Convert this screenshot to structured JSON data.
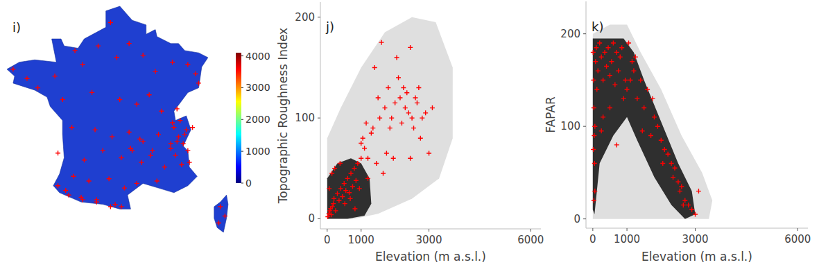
{
  "chart_data": [
    {
      "type": "map",
      "title": "i)",
      "color": "#ff0000",
      "marker": "plus",
      "lon": [
        -4.4,
        -3.5,
        -2.8,
        -1.7,
        -0.4,
        0.1,
        1.1,
        1.9,
        2.3,
        3.1,
        4.0,
        4.8,
        5.9,
        6.9,
        7.4,
        7.6,
        -1.2,
        0.7,
        2.5,
        3.6,
        4.4,
        5.2,
        6.2,
        -0.6,
        0.9,
        2.0,
        3.1,
        4.0,
        5.0,
        5.8,
        -1.5,
        0.2,
        1.4,
        2.6,
        3.3,
        3.9,
        4.6,
        5.4,
        -0.5,
        0.5,
        1.8,
        2.8,
        3.6,
        4.9,
        -1.0,
        0.0,
        1.0,
        2.2,
        6.0,
        6.3,
        6.6,
        6.9,
        7.0,
        6.5,
        6.1,
        6.8,
        5.8,
        5.9,
        6.4,
        7.2,
        6.2,
        6.7,
        -1.5,
        -0.8,
        0.1,
        1.0,
        1.9,
        2.6,
        9.0,
        9.3,
        8.9,
        3.2,
        3.8,
        4.5
      ],
      "lat": [
        48.4,
        48.0,
        47.6,
        48.1,
        49.2,
        48.6,
        49.4,
        50.4,
        48.9,
        49.5,
        49.0,
        48.3,
        48.7,
        48.6,
        48.2,
        47.8,
        47.1,
        47.4,
        47.1,
        46.9,
        47.3,
        46.6,
        46.7,
        45.9,
        45.8,
        45.5,
        45.7,
        45.3,
        45.6,
        45.2,
        44.8,
        44.5,
        44.9,
        44.6,
        44.9,
        44.4,
        44.9,
        44.2,
        43.8,
        43.6,
        43.7,
        43.3,
        43.5,
        43.6,
        43.2,
        42.9,
        42.8,
        42.6,
        45.9,
        45.5,
        45.2,
        44.9,
        44.4,
        44.3,
        44.7,
        45.8,
        45.0,
        46.1,
        46.2,
        45.9,
        45.3,
        45.6,
        43.4,
        43.0,
        42.8,
        42.7,
        42.5,
        42.5,
        42.5,
        42.1,
        41.8,
        45.0,
        45.4,
        44.7
      ],
      "colorbar_range": [
        0,
        4100
      ],
      "colorbar_ticks": [
        0,
        1000,
        2000,
        3000,
        4000
      ]
    },
    {
      "type": "scatter",
      "title": "j)",
      "x_label": "Elevation (m a.s.l.)",
      "y_label": "Topographic Roughness Index",
      "xlim": [
        -200,
        6300
      ],
      "xticks": [
        0,
        1000,
        3000,
        6000
      ],
      "ylim": [
        -10,
        215
      ],
      "yticks": [
        0,
        100,
        200
      ],
      "series": [
        {
          "type": "polygon",
          "color": "#c4c4c4",
          "x": [
            0,
            0,
            400,
            1000,
            1700,
            2500,
            3200,
            3700,
            3700,
            3300,
            2500,
            1500,
            800
          ],
          "values": [
            0,
            80,
            110,
            150,
            185,
            200,
            195,
            150,
            80,
            40,
            20,
            5,
            0
          ]
        },
        {
          "type": "polygon",
          "color": "#111111",
          "x": [
            0,
            0,
            300,
            700,
            1000,
            1250,
            1300,
            1100,
            600
          ],
          "values": [
            0,
            40,
            55,
            60,
            55,
            40,
            15,
            3,
            0
          ]
        },
        {
          "type": "scatter",
          "color": "#ff0000",
          "marker": "plus",
          "x": [
            20,
            50,
            80,
            100,
            120,
            150,
            180,
            200,
            250,
            300,
            350,
            400,
            450,
            500,
            550,
            600,
            650,
            700,
            750,
            800,
            850,
            900,
            950,
            1000,
            60,
            140,
            220,
            380,
            520,
            680,
            820,
            1050,
            1100,
            1150,
            1200,
            1300,
            1350,
            1400,
            1450,
            1500,
            1550,
            1600,
            1700,
            1750,
            1800,
            1850,
            1900,
            2000,
            2050,
            2100,
            2150,
            2200,
            2250,
            2300,
            2350,
            2400,
            2450,
            2500,
            2550,
            2600,
            2650,
            2700,
            2750,
            2800,
            2900,
            3000,
            3100,
            1650,
            1950,
            2450,
            1000,
            1200
          ],
          "values": [
            2,
            5,
            8,
            10,
            4,
            12,
            15,
            20,
            8,
            25,
            18,
            30,
            22,
            35,
            28,
            40,
            26,
            45,
            32,
            50,
            38,
            55,
            30,
            60,
            30,
            45,
            50,
            55,
            15,
            20,
            10,
            80,
            70,
            95,
            60,
            85,
            90,
            150,
            55,
            120,
            100,
            175,
            110,
            65,
            130,
            90,
            100,
            115,
            160,
            140,
            120,
            95,
            130,
            110,
            125,
            105,
            170,
            100,
            90,
            120,
            115,
            130,
            80,
            100,
            105,
            65,
            110,
            45,
            60,
            60,
            75,
            40
          ]
        }
      ]
    },
    {
      "type": "scatter",
      "title": "k)",
      "x_label": "Elevation (m a.s.l.)",
      "y_label": "FAPAR",
      "xlim": [
        -200,
        6300
      ],
      "xticks": [
        0,
        1000,
        3000,
        6000
      ],
      "ylim": [
        -10,
        235
      ],
      "yticks": [
        0,
        100,
        200
      ],
      "series": [
        {
          "type": "polygon",
          "color": "#c4c4c4",
          "x": [
            0,
            0,
            500,
            1000,
            1400,
            2000,
            2600,
            3200,
            3500,
            3400
          ],
          "values": [
            0,
            200,
            210,
            210,
            180,
            140,
            90,
            50,
            20,
            0
          ]
        },
        {
          "type": "polygon",
          "color": "#111111",
          "x": [
            0,
            0,
            900,
            1200,
            1500,
            2000,
            2500,
            2900,
            3000,
            2700,
            2300,
            1800,
            1300,
            1000,
            600,
            200,
            50
          ],
          "values": [
            10,
            195,
            195,
            180,
            150,
            105,
            60,
            30,
            5,
            0,
            15,
            45,
            85,
            110,
            90,
            60,
            5
          ]
        },
        {
          "type": "scatter",
          "color": "#ff0000",
          "marker": "plus",
          "x": [
            10,
            20,
            30,
            40,
            50,
            60,
            80,
            100,
            120,
            150,
            200,
            250,
            300,
            350,
            400,
            450,
            500,
            550,
            600,
            650,
            700,
            750,
            800,
            850,
            900,
            950,
            1000,
            30,
            15,
            60,
            300,
            500,
            1050,
            1100,
            1150,
            1200,
            1250,
            1300,
            1400,
            1500,
            1600,
            1700,
            1800,
            1900,
            2000,
            2100,
            2200,
            2300,
            2400,
            2500,
            2550,
            2600,
            2700,
            2800,
            2900,
            3000,
            3100,
            1450,
            1750,
            2050,
            2350,
            2650,
            700,
            250
          ],
          "values": [
            180,
            150,
            120,
            90,
            60,
            30,
            170,
            185,
            140,
            160,
            190,
            175,
            150,
            180,
            165,
            185,
            155,
            170,
            190,
            145,
            180,
            160,
            175,
            185,
            130,
            150,
            140,
            20,
            75,
            100,
            110,
            120,
            190,
            150,
            170,
            160,
            175,
            130,
            150,
            120,
            140,
            90,
            110,
            100,
            85,
            75,
            70,
            60,
            55,
            40,
            30,
            35,
            20,
            15,
            10,
            5,
            30,
            95,
            130,
            60,
            45,
            15,
            80,
            95
          ]
        }
      ]
    }
  ]
}
